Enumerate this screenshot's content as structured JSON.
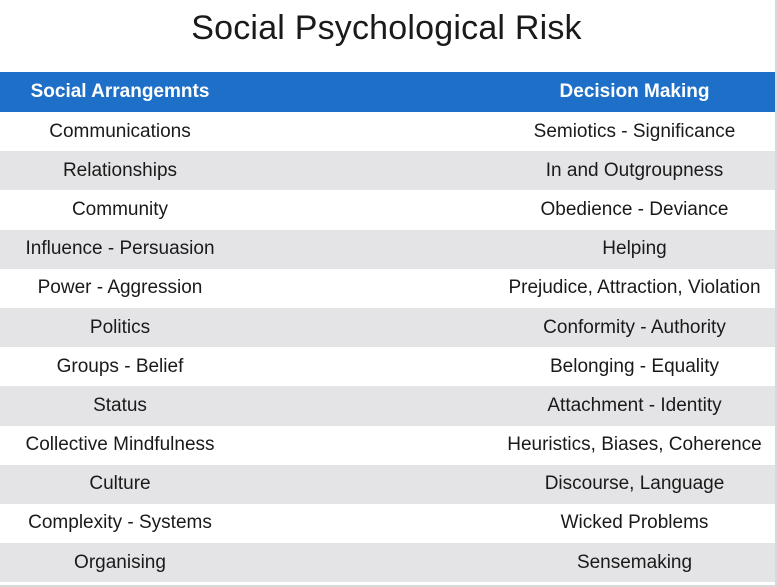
{
  "title": "Social Psychological Risk",
  "table": {
    "header_left": "Social Arrangemnts",
    "header_right": "Decision Making",
    "colors": {
      "header_bg": "#1e6fc8",
      "header_text": "#ffffff",
      "shaded_row": "#e4e4e6"
    },
    "rows": [
      {
        "left": "Communications",
        "right": "Semiotics - Significance"
      },
      {
        "left": "Relationships",
        "right": "In and Outgroupness"
      },
      {
        "left": "Community",
        "right": "Obedience - Deviance"
      },
      {
        "left": "Influence - Persuasion",
        "right": "Helping"
      },
      {
        "left": "Power - Aggression",
        "right": "Prejudice, Attraction, Violation"
      },
      {
        "left": "Politics",
        "right": "Conformity - Authority"
      },
      {
        "left": "Groups - Belief",
        "right": "Belonging - Equality"
      },
      {
        "left": "Status",
        "right": "Attachment - Identity"
      },
      {
        "left": "Collective Mindfulness",
        "right": "Heuristics, Biases, Coherence"
      },
      {
        "left": "Culture",
        "right": "Discourse, Language"
      },
      {
        "left": "Complexity - Systems",
        "right": "Wicked Problems"
      },
      {
        "left": "Organising",
        "right": "Sensemaking"
      }
    ]
  }
}
